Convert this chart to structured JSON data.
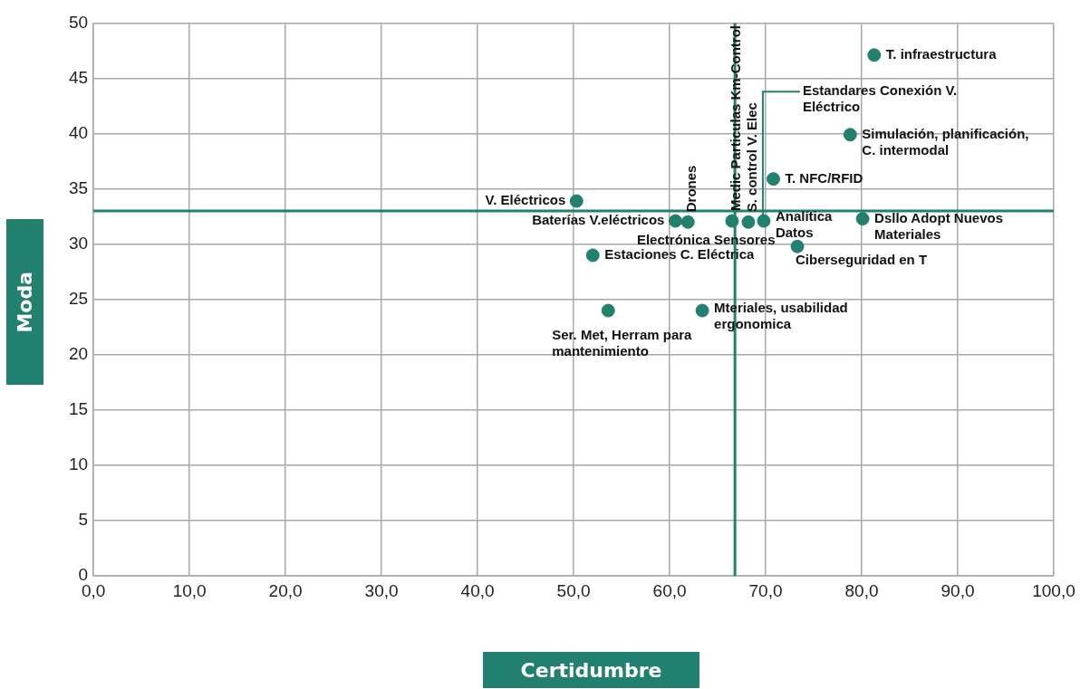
{
  "chart_data": {
    "type": "scatter",
    "xlabel": "Certidumbre",
    "ylabel": "Moda",
    "x": [
      81.3,
      78.8,
      70.8,
      50.3,
      60.6,
      61.9,
      66.5,
      68.2,
      69.8,
      80.1,
      73.3,
      52.0,
      53.6,
      63.4
    ],
    "series": [
      {
        "color": "#22806f",
        "values": [
          47.1,
          39.9,
          35.9,
          33.9,
          32.1,
          32.0,
          32.1,
          32.0,
          32.1,
          32.3,
          29.8,
          29.0,
          24.0,
          24.0
        ]
      }
    ],
    "xlim": [
      0,
      100
    ],
    "xticks": [
      {
        "value": 0,
        "label": "0,0"
      },
      {
        "value": 10,
        "label": "10,0"
      },
      {
        "value": 20,
        "label": "20,0"
      },
      {
        "value": 30,
        "label": "30,0"
      },
      {
        "value": 40,
        "label": "40,0"
      },
      {
        "value": 50,
        "label": "50,0"
      },
      {
        "value": 60,
        "label": "60,0"
      },
      {
        "value": 70,
        "label": "70,0"
      },
      {
        "value": 80,
        "label": "80,0"
      },
      {
        "value": 90,
        "label": "90,0"
      },
      {
        "value": 100,
        "label": "100,0"
      }
    ],
    "ylim": [
      0,
      50
    ],
    "yticks": [
      0,
      5,
      10,
      15,
      20,
      25,
      30,
      35,
      40,
      45,
      50
    ],
    "grid": true,
    "marker": "circle",
    "ref_lines": [
      {
        "axis": "x",
        "value": 66.8,
        "color": "#22806f"
      },
      {
        "axis": "y",
        "value": 33.0,
        "color": "#22806f"
      }
    ],
    "annotations": [
      {
        "text": "T. infraestructura",
        "x": 81.3,
        "y": 47.1
      },
      {
        "text": "Simulación, planificación, C. intermodal",
        "x": 78.8,
        "y": 39.9
      },
      {
        "text": "T. NFC/RFID",
        "x": 70.8,
        "y": 35.9
      },
      {
        "text": "V. Eléctricos",
        "x": 50.3,
        "y": 33.9
      },
      {
        "text": "Baterías V.eléctricos",
        "x": 60.6,
        "y": 32.1
      },
      {
        "text": "Drones",
        "x": 61.9,
        "y": 32.0
      },
      {
        "text": "Medic Particulas Km-Control",
        "x": 66.5,
        "y": 32.1
      },
      {
        "text": "S. control V. Elec",
        "x": 68.2,
        "y": 32.0
      },
      {
        "text": "Estandares Conexión V. Eléctrico",
        "x": 69.8,
        "y": 32.1
      },
      {
        "text": "Analítica Datos",
        "x": 69.8,
        "y": 32.1
      },
      {
        "text": "Electrónica Sensores",
        "x": 66.5,
        "y": 32.1
      },
      {
        "text": "Dsllo Adopt Nuevos Materiales",
        "x": 80.1,
        "y": 32.3
      },
      {
        "text": "Ciberseguridad en T",
        "x": 73.3,
        "y": 29.8
      },
      {
        "text": "Estaciones C. Eléctrica",
        "x": 52.0,
        "y": 29.0
      },
      {
        "text": "Ser. Met, Herram para mantenimiento",
        "x": 53.6,
        "y": 24.0
      },
      {
        "text": "Mteriales, usabilidad ergonomica",
        "x": 63.4,
        "y": 24.0
      }
    ]
  }
}
